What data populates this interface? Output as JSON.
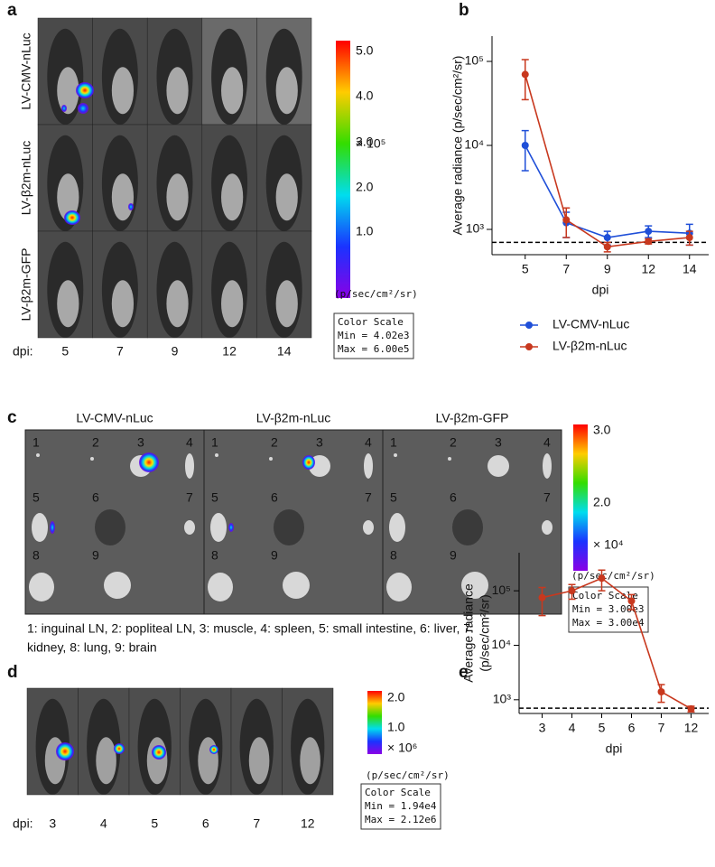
{
  "panel_labels": [
    "a",
    "b",
    "c",
    "d",
    "e"
  ],
  "panel_a": {
    "rows": [
      "LV-CMV-nLuc",
      "LV-β2m-nLuc",
      "LV-β2m-GFP"
    ],
    "dpi_label": "dpi:",
    "dpi": [
      "5",
      "7",
      "9",
      "12",
      "14"
    ],
    "colorbar": {
      "ticks": [
        "5.0",
        "4.0",
        "3.0",
        "2.0",
        "1.0"
      ],
      "multiplier": "× 10⁵",
      "units": "(p/sec/cm²/sr)",
      "scale_title": "Color Scale",
      "min": "Min = 4.02e3",
      "max": "Max = 6.00e5"
    }
  },
  "panel_c": {
    "titles": [
      "LV-CMV-nLuc",
      "LV-β2m-nLuc",
      "LV-β2m-GFP"
    ],
    "organ_numbers": [
      "1",
      "2",
      "3",
      "4",
      "5",
      "6",
      "7",
      "8",
      "9"
    ],
    "colorbar": {
      "ticks": [
        "3.0",
        "2.0"
      ],
      "multiplier": "× 10⁴",
      "units": "(p/sec/cm²/sr)",
      "scale_title": "Color Scale",
      "min": "Min = 3.00e3",
      "max": "Max = 3.00e4"
    },
    "caption": [
      "1: inguinal LN, 2: popliteal LN, 3: muscle, 4: spleen, 5: small intestine, 6: liver, 7:",
      "kidney, 8: lung, 9: brain"
    ]
  },
  "panel_d": {
    "dpi_label": "dpi:",
    "dpi": [
      "3",
      "4",
      "5",
      "6",
      "7",
      "12"
    ],
    "colorbar": {
      "ticks": [
        "2.0",
        "1.0"
      ],
      "multiplier": "× 10⁶",
      "units": "(p/sec/cm²/sr)",
      "scale_title": "Color Scale",
      "min": "Min = 1.94e4",
      "max": "Max = 2.12e6"
    }
  },
  "chart_data": [
    {
      "type": "line",
      "y_label": [
        "Average radiance (p/sec/cm²/sr)"
      ],
      "x_label": "dpi",
      "categories": [
        "5",
        "7",
        "9",
        "12",
        "14"
      ],
      "log_y": true,
      "ylim": [
        500,
        200000
      ],
      "yticks": [
        {
          "value": 1000,
          "label": "10³"
        },
        {
          "value": 10000,
          "label": "10⁴"
        },
        {
          "value": 100000,
          "label": "10⁵"
        }
      ],
      "threshold": 700,
      "legend": "bottom",
      "series": [
        {
          "name": "LV-CMV-nLuc",
          "color": "#1f4fd8",
          "values": [
            10000,
            1200,
            800,
            950,
            900
          ],
          "errors": [
            5000,
            400,
            150,
            150,
            250
          ]
        },
        {
          "name": "LV-β2m-nLuc",
          "color": "#c8381e",
          "values": [
            70000,
            1300,
            620,
            720,
            800
          ],
          "errors": [
            35000,
            500,
            80,
            50,
            150
          ]
        }
      ]
    },
    {
      "type": "line",
      "y_label": [
        "Average radiance",
        "(p/sec/cm²/sr)"
      ],
      "x_label": "dpi",
      "categories": [
        "3",
        "4",
        "5",
        "6",
        "7",
        "12"
      ],
      "log_y": true,
      "ylim": [
        560,
        500000
      ],
      "yticks": [
        {
          "value": 1000,
          "label": "10³"
        },
        {
          "value": 10000,
          "label": "10⁴"
        },
        {
          "value": 100000,
          "label": "10⁵"
        }
      ],
      "threshold": 700,
      "series": [
        {
          "color": "#c8381e",
          "values": [
            75000,
            100000,
            170000,
            65000,
            1400,
            680
          ],
          "errors": [
            40000,
            30000,
            70000,
            20000,
            500,
            80
          ]
        }
      ]
    }
  ]
}
